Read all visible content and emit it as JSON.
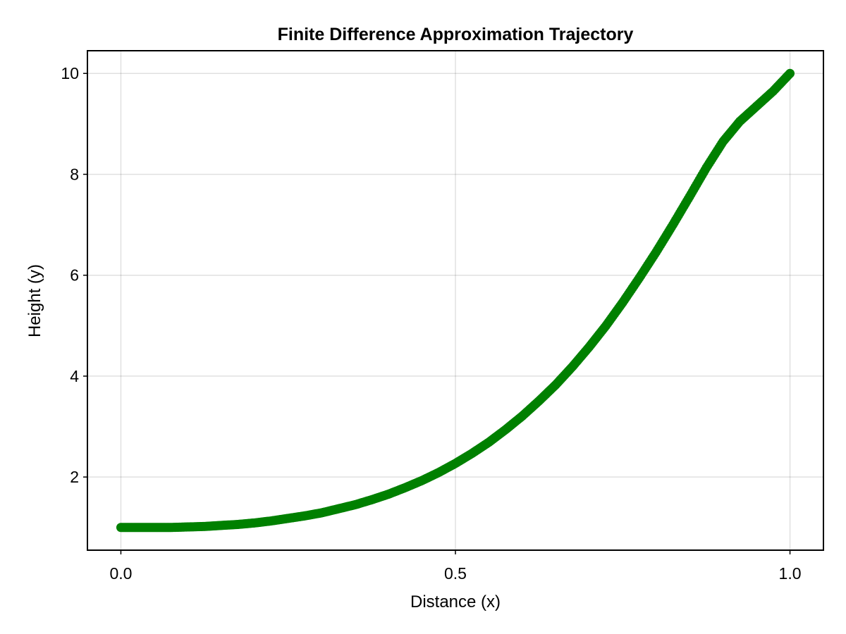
{
  "chart_data": {
    "type": "scatter",
    "title": "Finite Difference Approximation Trajectory",
    "xlabel": "Distance (x)",
    "ylabel": "Height (y)",
    "xlim": [
      -0.05,
      1.05
    ],
    "ylim": [
      0.55,
      10.45
    ],
    "xticks": [
      0.0,
      0.5,
      1.0
    ],
    "xtick_labels": [
      "0.0",
      "0.5",
      "1.0"
    ],
    "yticks": [
      2,
      4,
      6,
      8,
      10
    ],
    "ytick_labels": [
      "2",
      "4",
      "6",
      "8",
      "10"
    ],
    "grid": true,
    "legend": "none",
    "color": "#008000",
    "series": [
      {
        "x": [
          0.0,
          0.025,
          0.05,
          0.075,
          0.1,
          0.125,
          0.15,
          0.175,
          0.2,
          0.225,
          0.25,
          0.275,
          0.3,
          0.325,
          0.35,
          0.375,
          0.4,
          0.425,
          0.45,
          0.475,
          0.5,
          0.525,
          0.55,
          0.575,
          0.6,
          0.625,
          0.65,
          0.675,
          0.7,
          0.725,
          0.75,
          0.775,
          0.8,
          0.825,
          0.85,
          0.875,
          0.9,
          0.925,
          0.95,
          0.975,
          1.0
        ],
        "y": [
          1.0,
          1.0,
          1.0,
          1.0,
          1.01,
          1.02,
          1.04,
          1.06,
          1.09,
          1.13,
          1.18,
          1.23,
          1.29,
          1.37,
          1.45,
          1.55,
          1.66,
          1.79,
          1.93,
          2.09,
          2.27,
          2.47,
          2.69,
          2.94,
          3.21,
          3.51,
          3.83,
          4.19,
          4.58,
          5.0,
          5.46,
          5.95,
          6.46,
          7.0,
          7.56,
          8.13,
          8.65,
          9.05,
          9.35,
          9.65,
          10.0
        ]
      }
    ]
  }
}
